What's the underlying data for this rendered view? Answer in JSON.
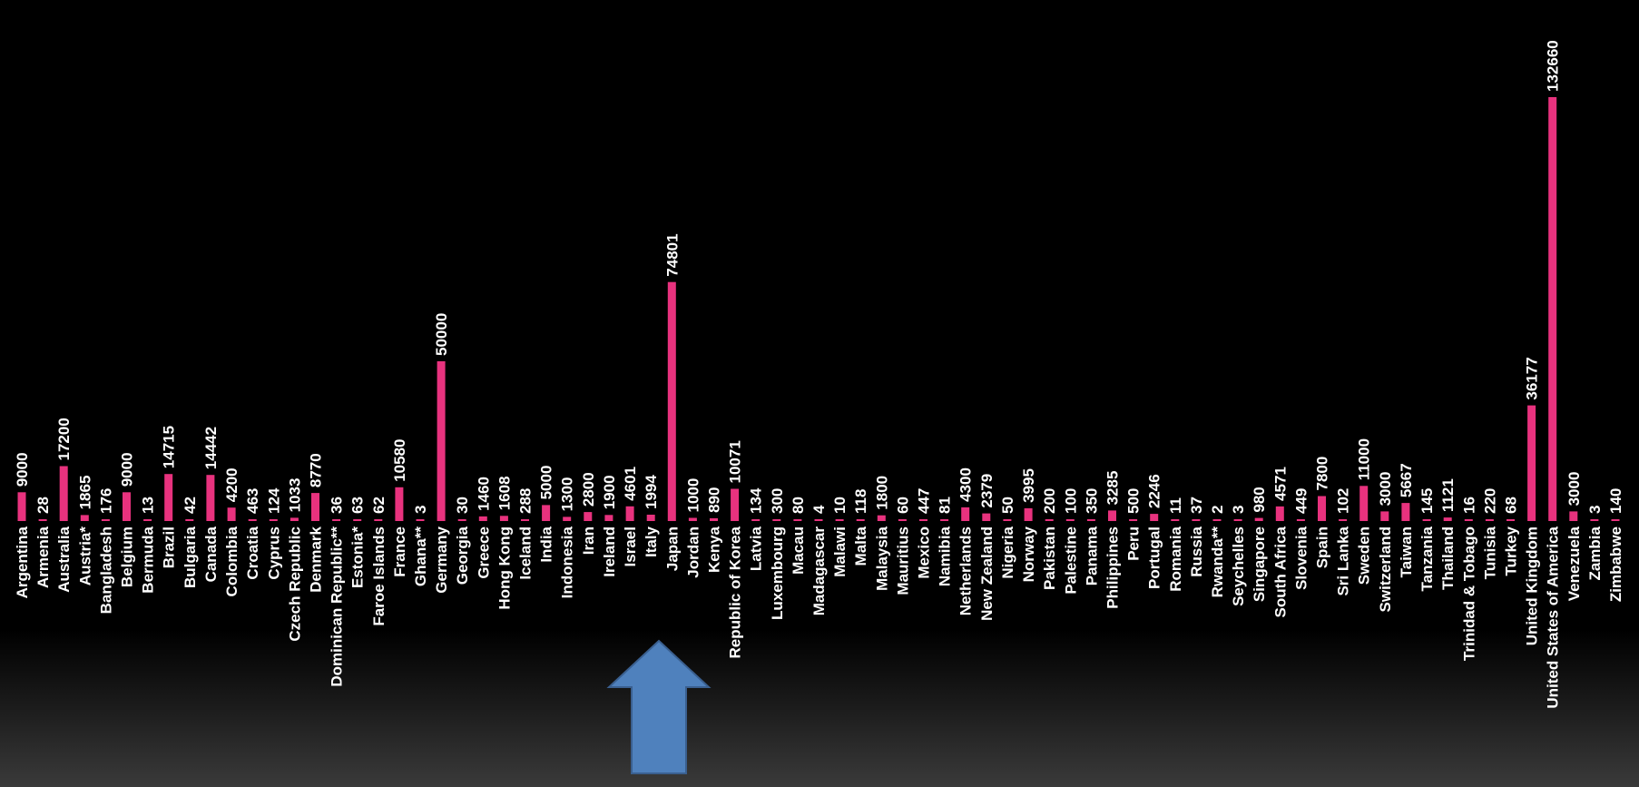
{
  "chart_data": {
    "type": "bar",
    "categories": [
      "Argentina",
      "Armenia",
      "Australia",
      "Austria*",
      "Bangladesh",
      "Belgium",
      "Bermuda",
      "Brazil",
      "Bulgaria",
      "Canada",
      "Colombia",
      "Croatia",
      "Cyprus",
      "Czech Republic",
      "Denmark",
      "Dominican Republic**",
      "Estonia*",
      "Faroe Islands",
      "France",
      "Ghana**",
      "Germany",
      "Georgia",
      "Greece",
      "Hong Kong",
      "Iceland",
      "India",
      "Indonesia",
      "Iran",
      "Ireland",
      "Israel",
      "Italy",
      "Japan",
      "Jordan",
      "Kenya",
      "Republic of Korea",
      "Latvia",
      "Luxembourg",
      "Macau",
      "Madagascar",
      "Malawi",
      "Malta",
      "Malaysia",
      "Mauritius",
      "Mexico",
      "Namibia",
      "Netherlands",
      "New Zealand",
      "Nigeria",
      "Norway",
      "Pakistan",
      "Palestine",
      "Panama",
      "Philippines",
      "Peru",
      "Portugal",
      "Romania",
      "Russia",
      "Rwanda**",
      "Seychelles",
      "Singapore",
      "South Africa",
      "Slovenia",
      "Spain",
      "Sri Lanka",
      "Sweden",
      "Switzerland",
      "Taiwan",
      "Tanzania",
      "Thailand",
      "Trinidad & Tobago",
      "Tunisia",
      "Turkey",
      "United Kingdom",
      "United States of America",
      "Venezuela",
      "Zambia",
      "Zimbabwe"
    ],
    "values": [
      9000,
      28,
      17200,
      1865,
      176,
      9000,
      13,
      14715,
      42,
      14442,
      4200,
      463,
      124,
      1033,
      8770,
      36,
      63,
      62,
      10580,
      3,
      50000,
      30,
      1460,
      1608,
      288,
      5000,
      1300,
      2800,
      1900,
      4601,
      1994,
      74801,
      1000,
      890,
      10071,
      134,
      300,
      80,
      4,
      10,
      118,
      1800,
      60,
      447,
      81,
      4300,
      2379,
      50,
      3995,
      200,
      100,
      350,
      3285,
      500,
      2246,
      11,
      37,
      2,
      3,
      980,
      4571,
      449,
      7800,
      102,
      11000,
      3000,
      5667,
      145,
      1121,
      16,
      220,
      68,
      36177,
      132660,
      3000,
      3,
      140
    ],
    "ylim": [
      0,
      140000
    ],
    "bar_color": "#e8327e",
    "text_color": "#ffffff",
    "background": "#000000",
    "grid": false,
    "title": "",
    "xlabel": "",
    "ylabel": ""
  },
  "annotation": {
    "arrow_color": "#4f81bd",
    "arrow_icon": "up-arrow-icon"
  }
}
